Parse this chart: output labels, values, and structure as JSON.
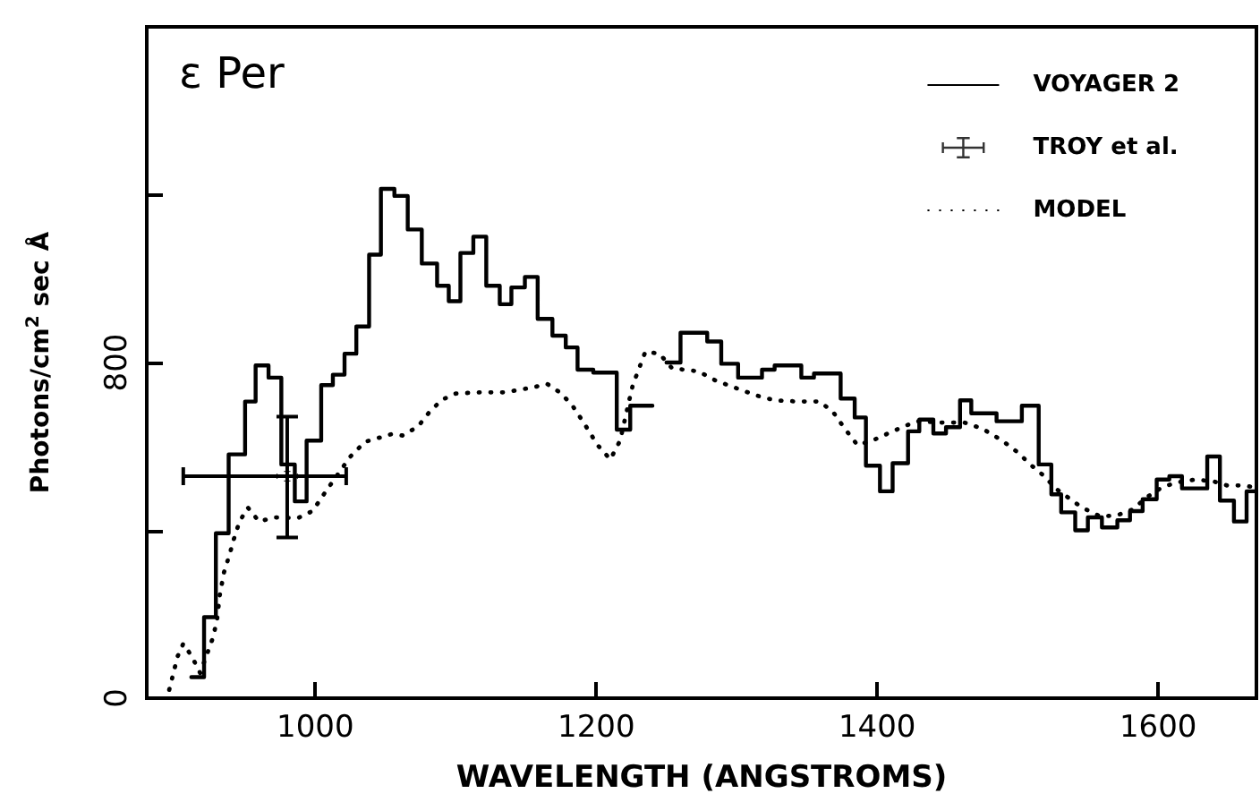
{
  "chart_data": {
    "type": "step",
    "title": "ε Per",
    "xlabel": "WAVELENGTH (ANGSTROMS)",
    "ylabel": "Photons/cm$^{2}$ sec Å",
    "xlim": [
      880,
      1670
    ],
    "xticks": [
      1000,
      1200,
      1400,
      1600
    ],
    "ylim": [
      0,
      1600
    ],
    "yticks": [
      0,
      {
        "value": 400,
        "label": null
      },
      800,
      {
        "value": 1200,
        "label": null
      }
    ],
    "legend": "top right",
    "series": [
      {
        "name": "VOYAGER 2",
        "color": "#000000",
        "line_style": "solid",
        "x": [
          911.7,
          920.8,
          929.2,
          938.3,
          950,
          957.5,
          966.7,
          975.8,
          985.4,
          993.8,
          1004.2,
          1012.5,
          1020.8,
          1029.2,
          1038.3,
          1046.7,
          1056.3,
          1065.8,
          1075.8,
          1086.7,
          1095,
          1103.3,
          1112.5,
          1121.7,
          1131.3,
          1139.6,
          1149.2,
          1158.3,
          1168.8,
          1178.3,
          1186.7,
          1197.9,
          1214.6,
          1224.2,
          1232.5,
          1240,
          1250,
          1260,
          1279,
          1289,
          1301,
          1318,
          1327,
          1346,
          1355,
          1374,
          1384,
          1392,
          1402,
          1411,
          1422,
          1430,
          1440,
          1449,
          1459,
          1467,
          1485,
          1503,
          1515,
          1524,
          1531,
          1541,
          1550,
          1560,
          1571,
          1580,
          1589,
          1599,
          1608,
          1617,
          1635,
          1644,
          1654,
          1663,
          1669
        ],
        "values": [
          50,
          193,
          393,
          581,
          707,
          793,
          764,
          557,
          469,
          614,
          746,
          771,
          821,
          886,
          1057,
          1214,
          1197,
          1117,
          1036,
          983,
          946,
          1061,
          1100,
          983,
          939,
          979,
          1004,
          904,
          864,
          836,
          783,
          776,
          640,
          697,
          697,
          null,
          800,
          871,
          850,
          797,
          764,
          783,
          793,
          764,
          774,
          714,
          669,
          554,
          493,
          560,
          636,
          664,
          631,
          646,
          710,
          679,
          660,
          697,
          557,
          486,
          443,
          400,
          431,
          407,
          424,
          446,
          474,
          521,
          529,
          500,
          576,
          471,
          421,
          493,
          493
        ]
      },
      {
        "name": "TROY et al.",
        "type": "scatter",
        "color": "#000000",
        "x": [
          980
        ],
        "values": [
          529
        ],
        "errors": [
          [
            383,
            671
          ]
        ],
        "xerrors": [
          [
            906,
            1022
          ]
        ]
      },
      {
        "name": "MODEL",
        "type": "line",
        "color": "#000000",
        "line_style": "dotted",
        "x": [
          896,
          902,
          906,
          912,
          918,
          927,
          930,
          932,
          935,
          939,
          942,
          946,
          952,
          960,
          971,
          987.5,
          998,
          1007.5,
          1025,
          1035.4,
          1054,
          1062,
          1073,
          1081,
          1090,
          1100,
          1117,
          1135,
          1154,
          1165,
          1174,
          1182.5,
          1191,
          1201,
          1210,
          1217,
          1223,
          1226,
          1235,
          1245,
          1254,
          1262.5,
          1272.6,
          1285,
          1302,
          1314.5,
          1327,
          1344,
          1359,
          1368.4,
          1376.8,
          1386,
          1396.6,
          1411,
          1428,
          1445,
          1462,
          1474.5,
          1489,
          1500,
          1509,
          1519,
          1527,
          1535.6,
          1546,
          1559,
          1571,
          1582,
          1592,
          1603,
          1613.5,
          1626,
          1639,
          1649,
          1660,
          1668
        ],
        "values": [
          20,
          100,
          130,
          100,
          60,
          143,
          186,
          246,
          300,
          343,
          379,
          421,
          454,
          421,
          431,
          429,
          446,
          493,
          576,
          611,
          629,
          626,
          647,
          681,
          711,
          726,
          729,
          729,
          740,
          749,
          729,
          700,
          657,
          603,
          569,
          614,
          703,
          746,
          826,
          821,
          786,
          783,
          779,
          757,
          736,
          721,
          710,
          707,
          707,
          683,
          643,
          603,
          614,
          636,
          660,
          657,
          657,
          643,
          614,
          586,
          557,
          529,
          500,
          479,
          454,
          433,
          436,
          450,
          479,
          503,
          514,
          521,
          517,
          507,
          507,
          503
        ]
      }
    ]
  }
}
